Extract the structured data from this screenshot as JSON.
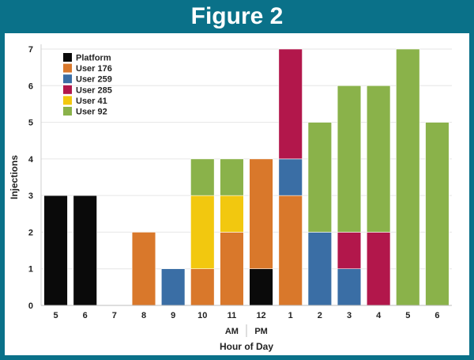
{
  "figure_title": "Figure 2",
  "chart_data": {
    "type": "bar",
    "stacked": true,
    "categories": [
      "5",
      "6",
      "7",
      "8",
      "9",
      "10",
      "11",
      "12",
      "1",
      "2",
      "3",
      "4",
      "5",
      "6"
    ],
    "period_labels": {
      "am": "AM",
      "pm": "PM"
    },
    "xlabel": "Hour of Day",
    "ylabel": "Injections",
    "ylim": [
      0,
      7
    ],
    "yticks": [
      0,
      1,
      2,
      3,
      4,
      5,
      6,
      7
    ],
    "legend_position": "top-left",
    "series": [
      {
        "name": "Platform",
        "color": "#0a0a0a",
        "values": [
          3,
          3,
          0,
          0,
          0,
          0,
          0,
          1,
          0,
          0,
          0,
          0,
          0,
          0
        ]
      },
      {
        "name": "User 176",
        "color": "#d9782b",
        "values": [
          0,
          0,
          0,
          2,
          0,
          1,
          2,
          3,
          3,
          0,
          0,
          0,
          0,
          0
        ]
      },
      {
        "name": "User 259",
        "color": "#3a6ea5",
        "values": [
          0,
          0,
          0,
          0,
          1,
          0,
          0,
          0,
          1,
          2,
          1,
          0,
          0,
          0
        ]
      },
      {
        "name": "User 285",
        "color": "#b2174b",
        "values": [
          0,
          0,
          0,
          0,
          0,
          0,
          0,
          0,
          3,
          0,
          1,
          2,
          0,
          0
        ]
      },
      {
        "name": "User 41",
        "color": "#f2c80f",
        "values": [
          0,
          0,
          0,
          0,
          0,
          2,
          1,
          0,
          0,
          0,
          0,
          0,
          0,
          0
        ]
      },
      {
        "name": "User 92",
        "color": "#8ab24a",
        "values": [
          0,
          0,
          0,
          0,
          0,
          1,
          1,
          0,
          0,
          3,
          4,
          4,
          7,
          5
        ]
      }
    ]
  }
}
